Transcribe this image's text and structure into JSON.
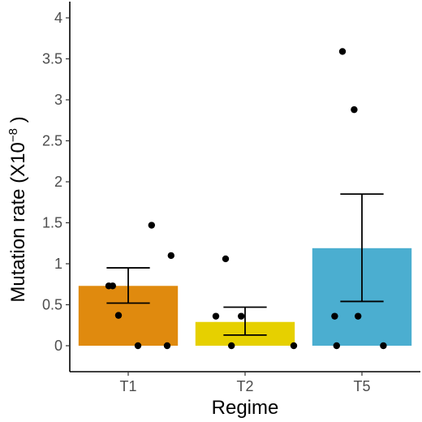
{
  "chart_data": {
    "type": "bar",
    "categories": [
      "T1",
      "T2",
      "T5"
    ],
    "values": [
      0.73,
      0.29,
      1.19
    ],
    "error_bars": [
      {
        "low": 0.52,
        "high": 0.95
      },
      {
        "low": 0.13,
        "high": 0.47
      },
      {
        "low": 0.54,
        "high": 1.85
      }
    ],
    "points": [
      [
        1.47,
        1.1,
        0.73,
        0.73,
        0.37,
        0.0
      ],
      [
        1.06,
        0.36,
        0.36,
        0.0,
        0.0,
        0.0
      ],
      [
        3.59,
        2.88,
        0.36,
        0.36,
        0.0,
        0.0
      ]
    ],
    "colors": [
      "#E08A0E",
      "#E6D000",
      "#4BAED0"
    ],
    "xlabel": "Regime",
    "ylabel_text": "Mutation rate (X10",
    "ylabel_exponent": "−8",
    "ylabel_close": " )",
    "ylim": [
      -0.3,
      4.2
    ],
    "yticks": [
      "0",
      "0.5",
      "1",
      "1.5",
      "2",
      "2.5",
      "3",
      "3.5",
      "4"
    ],
    "ytick_values": [
      0,
      0.5,
      1,
      1.5,
      2,
      2.5,
      3,
      3.5,
      4
    ],
    "grid": false
  }
}
